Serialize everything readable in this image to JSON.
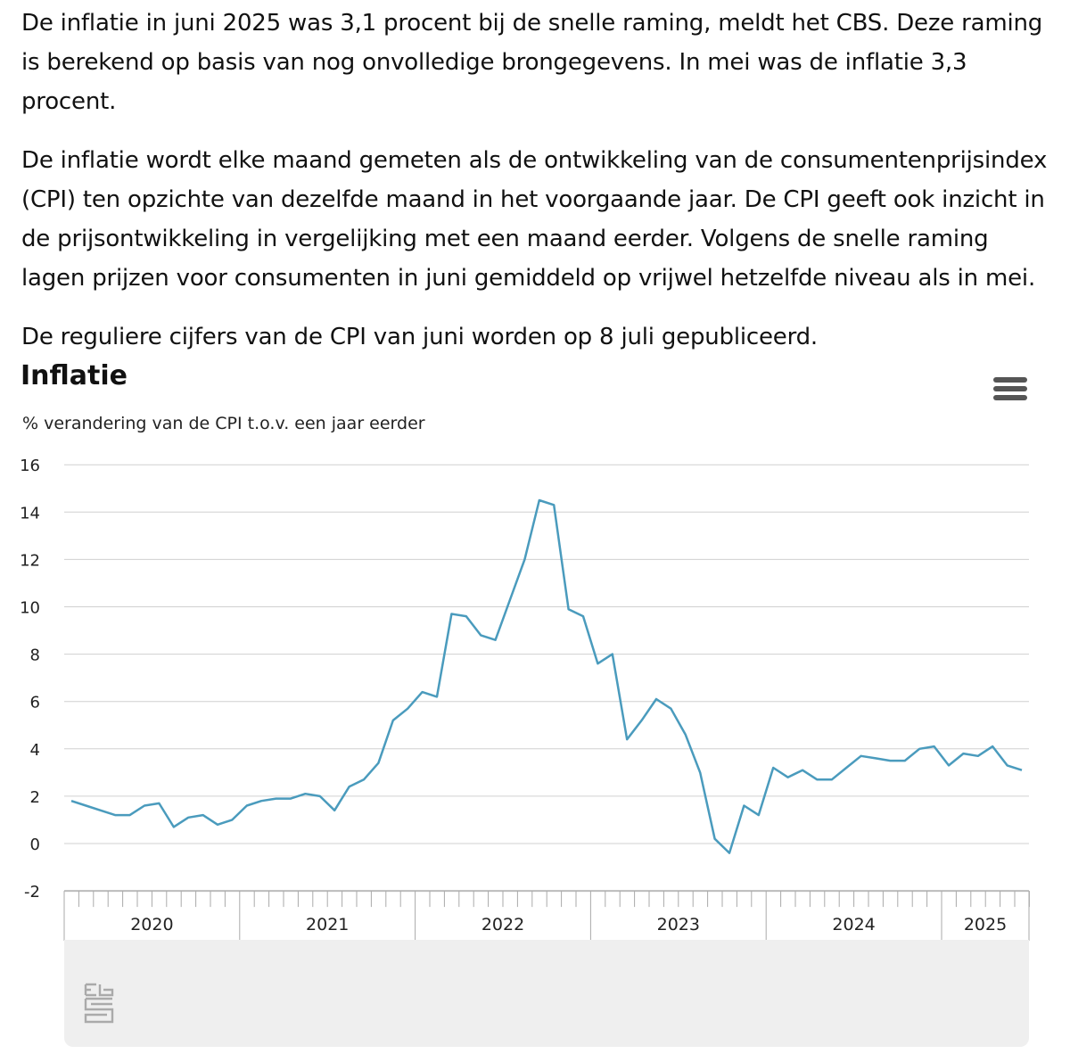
{
  "article": {
    "paragraphs": [
      "De inflatie in juni 2025 was 3,1 procent bij de snelle raming, meldt het CBS. Deze raming is berekend op basis van nog onvolledige brongegevens. In mei was de inflatie 3,3 procent.",
      "De inflatie wordt elke maand gemeten als de ontwikkeling van de consumentenprijsindex (CPI) ten opzichte van dezelfde maand in het voorgaande jaar. De CPI geeft ook inzicht in de prijsontwikkeling in vergelijking met een maand eerder. Volgens de snelle raming lagen prijzen voor consumenten in juni gemiddeld op vrijwel hetzelfde niveau als in mei.",
      "De reguliere cijfers van de CPI van juni worden op 8 juli gepubliceerd."
    ]
  },
  "chart_data": {
    "type": "line",
    "title": "Inflatie",
    "subtitle": "% verandering van de CPI t.o.v. een jaar eerder",
    "ylim": [
      -2,
      16
    ],
    "yticks": [
      "-2",
      "0",
      "2",
      "4",
      "6",
      "8",
      "10",
      "12",
      "14",
      "16"
    ],
    "grid": true,
    "line_color": "#4a9bbd",
    "x_year_labels": [
      "2020",
      "2021",
      "2022",
      "2023",
      "2024",
      "2025"
    ],
    "x": [
      "2020-01",
      "2020-02",
      "2020-03",
      "2020-04",
      "2020-05",
      "2020-06",
      "2020-07",
      "2020-08",
      "2020-09",
      "2020-10",
      "2020-11",
      "2020-12",
      "2021-01",
      "2021-02",
      "2021-03",
      "2021-04",
      "2021-05",
      "2021-06",
      "2021-07",
      "2021-08",
      "2021-09",
      "2021-10",
      "2021-11",
      "2021-12",
      "2022-01",
      "2022-02",
      "2022-03",
      "2022-04",
      "2022-05",
      "2022-06",
      "2022-07",
      "2022-08",
      "2022-09",
      "2022-10",
      "2022-11",
      "2022-12",
      "2023-01",
      "2023-02",
      "2023-03",
      "2023-04",
      "2023-05",
      "2023-06",
      "2023-07",
      "2023-08",
      "2023-09",
      "2023-10",
      "2023-11",
      "2023-12",
      "2024-01",
      "2024-02",
      "2024-03",
      "2024-04",
      "2024-05",
      "2024-06",
      "2024-07",
      "2024-08",
      "2024-09",
      "2024-10",
      "2024-11",
      "2024-12",
      "2025-01",
      "2025-02",
      "2025-03",
      "2025-04",
      "2025-05",
      "2025-06"
    ],
    "values": [
      1.8,
      1.6,
      1.4,
      1.2,
      1.2,
      1.6,
      1.7,
      0.7,
      1.1,
      1.2,
      0.8,
      1.0,
      1.6,
      1.8,
      1.9,
      1.9,
      2.1,
      2.0,
      1.4,
      2.4,
      2.7,
      3.4,
      5.2,
      5.7,
      6.4,
      6.2,
      9.7,
      9.6,
      8.8,
      8.6,
      10.3,
      12.0,
      14.5,
      14.3,
      9.9,
      9.6,
      7.6,
      8.0,
      4.4,
      5.2,
      6.1,
      5.7,
      4.6,
      3.0,
      0.2,
      -0.4,
      1.6,
      1.2,
      3.2,
      2.8,
      3.1,
      2.7,
      2.7,
      3.2,
      3.7,
      3.6,
      3.5,
      3.5,
      4.0,
      4.1,
      3.3,
      3.8,
      3.7,
      4.1,
      3.3,
      3.1
    ]
  },
  "toolbar": {
    "menu_icon": "hamburger-menu-icon"
  },
  "logo": {
    "text": "cbs"
  }
}
